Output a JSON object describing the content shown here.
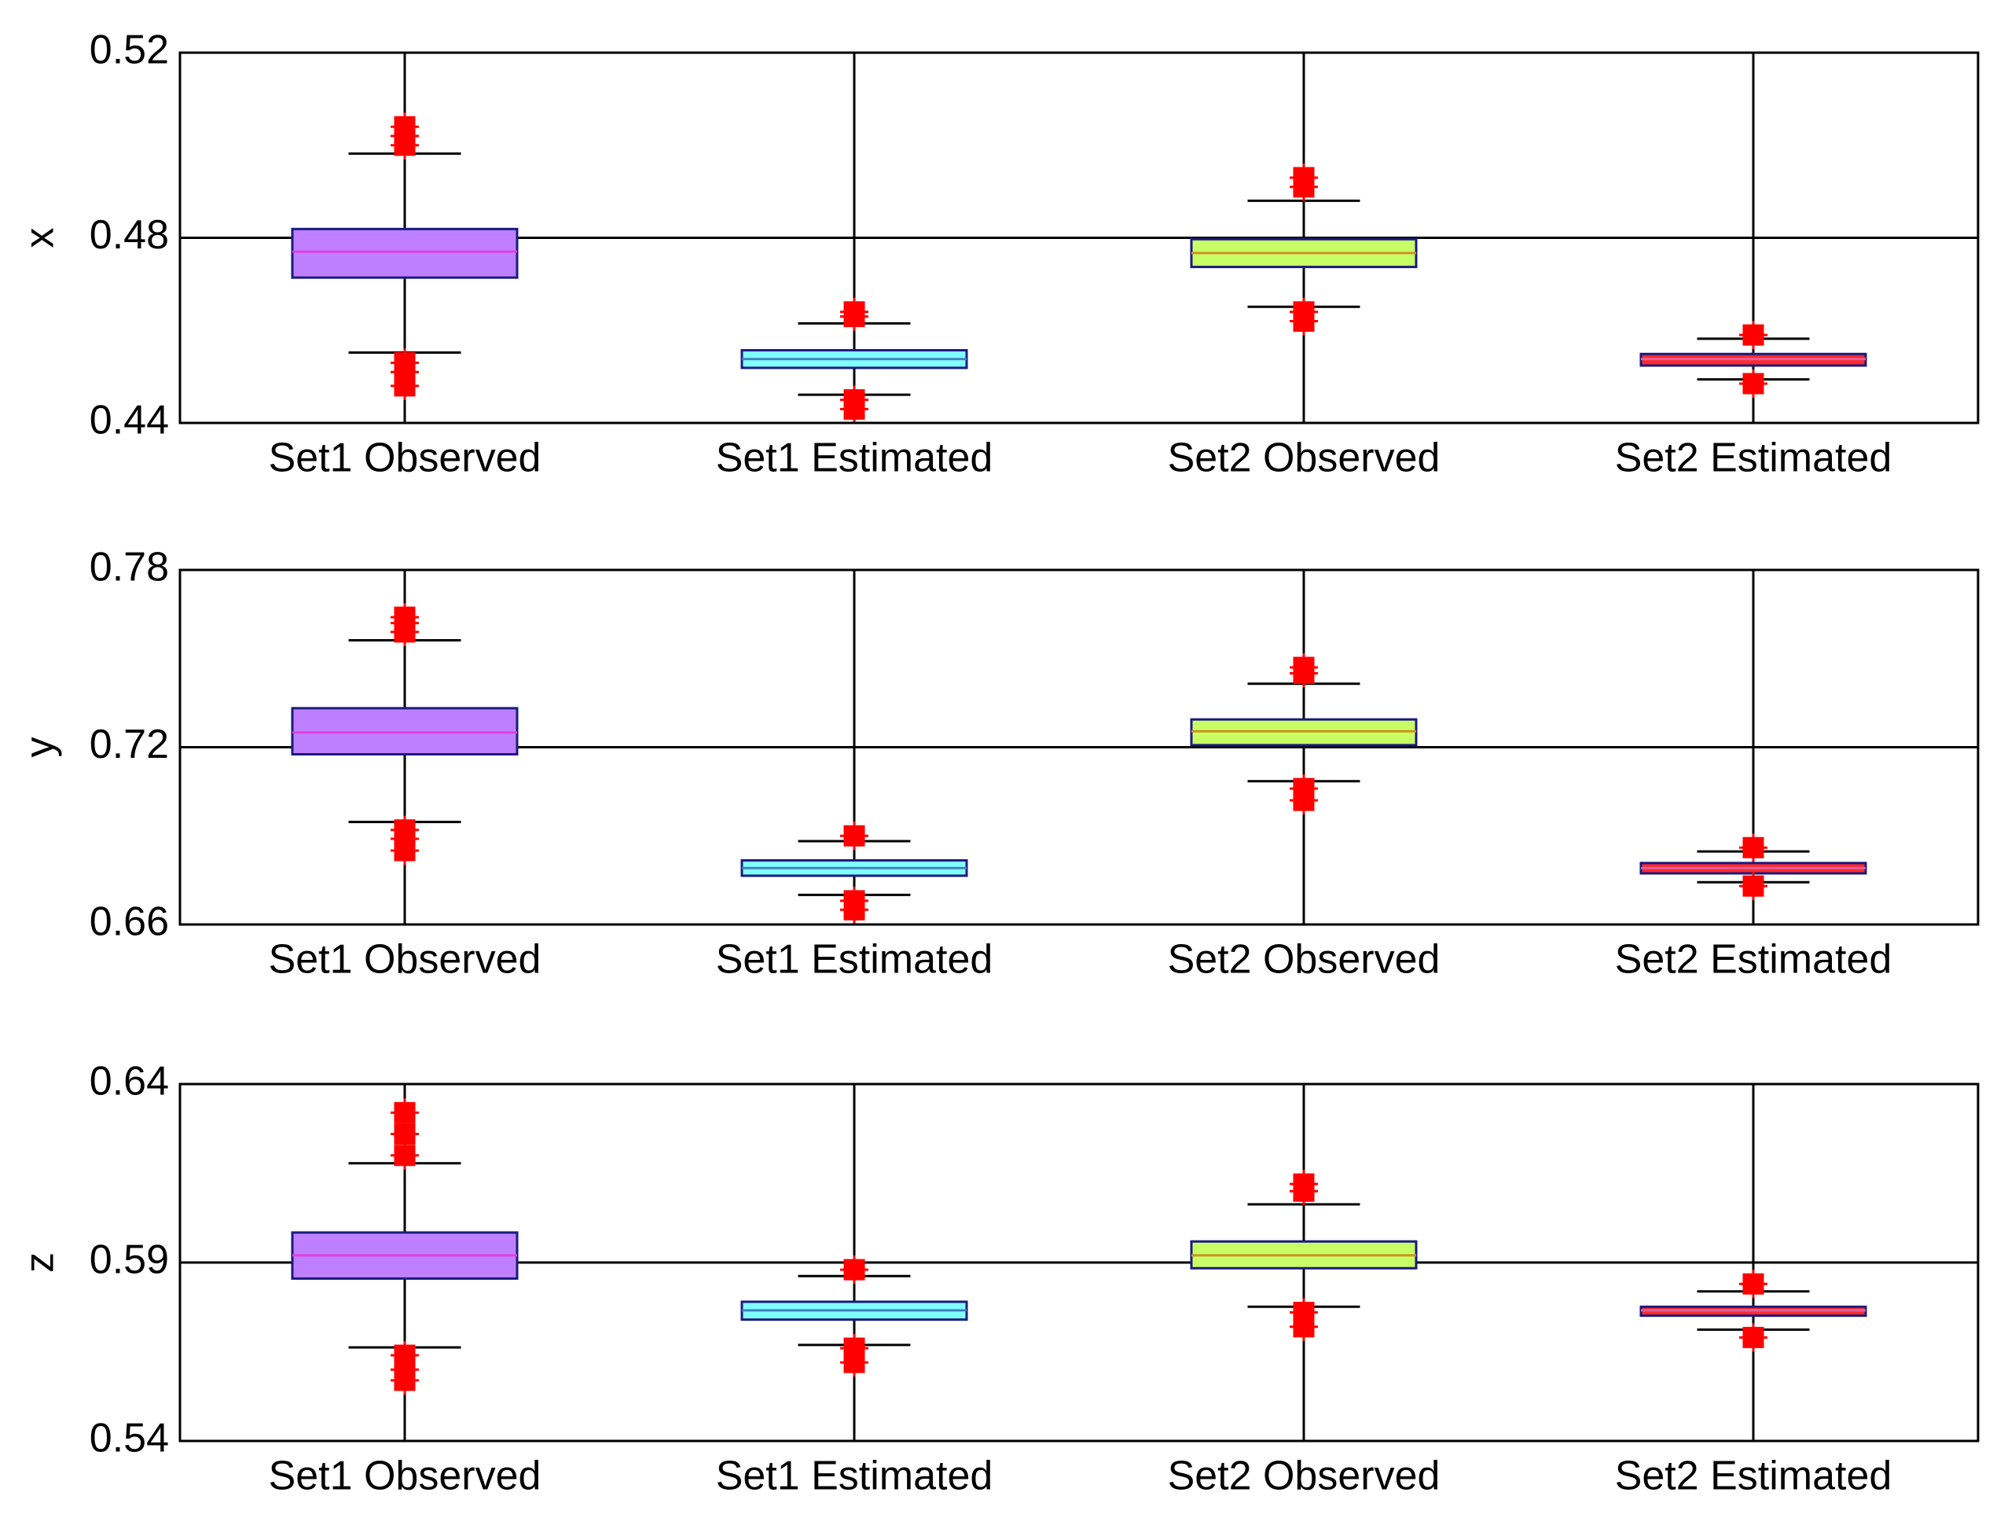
{
  "chart_data": [
    {
      "type": "box",
      "ylabel": "x",
      "categories": [
        "Set1 Observed",
        "Set1 Estimated",
        "Set2 Observed",
        "Set2 Estimated"
      ],
      "colors": [
        "#bf80ff",
        "#80ffff",
        "#c8ff66",
        "#ff2a2a"
      ],
      "median_colors": [
        "#e040e0",
        "#4080c0",
        "#d09020",
        "#e060a0"
      ],
      "ylim": [
        0.44,
        0.52
      ],
      "yticks": [
        0.44,
        0.48,
        0.52
      ],
      "grid": true,
      "boxes": [
        {
          "whisker_low": 0.4552,
          "q1": 0.4714,
          "median": 0.477,
          "q3": 0.4819,
          "whisker_high": 0.4982,
          "outliers": [
            0.5,
            0.502,
            0.504,
            0.453,
            0.451,
            0.448
          ]
        },
        {
          "whisker_low": 0.4461,
          "q1": 0.4519,
          "median": 0.4538,
          "q3": 0.4557,
          "whisker_high": 0.4615,
          "outliers": [
            0.464,
            0.463,
            0.445,
            0.443
          ]
        },
        {
          "whisker_low": 0.4651,
          "q1": 0.4737,
          "median": 0.4767,
          "q3": 0.4797,
          "whisker_high": 0.488,
          "outliers": [
            0.493,
            0.491,
            0.464,
            0.462
          ]
        },
        {
          "whisker_low": 0.4494,
          "q1": 0.4524,
          "median": 0.4538,
          "q3": 0.4549,
          "whisker_high": 0.4582,
          "outliers": [
            0.459,
            0.4485
          ]
        }
      ]
    },
    {
      "type": "box",
      "ylabel": "y",
      "categories": [
        "Set1 Observed",
        "Set1 Estimated",
        "Set2 Observed",
        "Set2 Estimated"
      ],
      "colors": [
        "#bf80ff",
        "#80ffff",
        "#c8ff66",
        "#ff2a2a"
      ],
      "median_colors": [
        "#e040e0",
        "#4080c0",
        "#d09020",
        "#e060a0"
      ],
      "ylim": [
        0.66,
        0.78
      ],
      "yticks": [
        0.66,
        0.72,
        0.78
      ],
      "grid": true,
      "boxes": [
        {
          "whisker_low": 0.6947,
          "q1": 0.7176,
          "median": 0.725,
          "q3": 0.7332,
          "whisker_high": 0.7562,
          "outliers": [
            0.764,
            0.762,
            0.759,
            0.692,
            0.689,
            0.685
          ]
        },
        {
          "whisker_low": 0.67,
          "q1": 0.6765,
          "median": 0.6791,
          "q3": 0.6817,
          "whisker_high": 0.6882,
          "outliers": [
            0.69,
            0.668,
            0.665
          ]
        },
        {
          "whisker_low": 0.7085,
          "q1": 0.7207,
          "median": 0.7254,
          "q3": 0.7294,
          "whisker_high": 0.7415,
          "outliers": [
            0.745,
            0.747,
            0.706,
            0.702
          ]
        },
        {
          "whisker_low": 0.6743,
          "q1": 0.6773,
          "median": 0.6791,
          "q3": 0.6808,
          "whisker_high": 0.6847,
          "outliers": [
            0.686,
            0.673
          ]
        }
      ]
    },
    {
      "type": "box",
      "ylabel": "z",
      "categories": [
        "Set1 Observed",
        "Set1 Estimated",
        "Set2 Observed",
        "Set2 Estimated"
      ],
      "colors": [
        "#bf80ff",
        "#80ffff",
        "#c8ff66",
        "#ff2a2a"
      ],
      "median_colors": [
        "#e040e0",
        "#4080c0",
        "#d09020",
        "#e060a0"
      ],
      "ylim": [
        0.54,
        0.64
      ],
      "yticks": [
        0.54,
        0.59,
        0.64
      ],
      "grid": true,
      "boxes": [
        {
          "whisker_low": 0.5662,
          "q1": 0.5855,
          "median": 0.592,
          "q3": 0.5984,
          "whisker_high": 0.6178,
          "outliers": [
            0.632,
            0.626,
            0.62,
            0.564,
            0.56,
            0.557
          ]
        },
        {
          "whisker_low": 0.5669,
          "q1": 0.574,
          "median": 0.5766,
          "q3": 0.579,
          "whisker_high": 0.5862,
          "outliers": [
            0.588,
            0.566,
            0.562
          ]
        },
        {
          "whisker_low": 0.5776,
          "q1": 0.5884,
          "median": 0.592,
          "q3": 0.5959,
          "whisker_high": 0.6063,
          "outliers": [
            0.61,
            0.612,
            0.576,
            0.572
          ]
        },
        {
          "whisker_low": 0.5712,
          "q1": 0.5751,
          "median": 0.5766,
          "q3": 0.5776,
          "whisker_high": 0.5819,
          "outliers": [
            0.584,
            0.569
          ]
        }
      ]
    }
  ]
}
